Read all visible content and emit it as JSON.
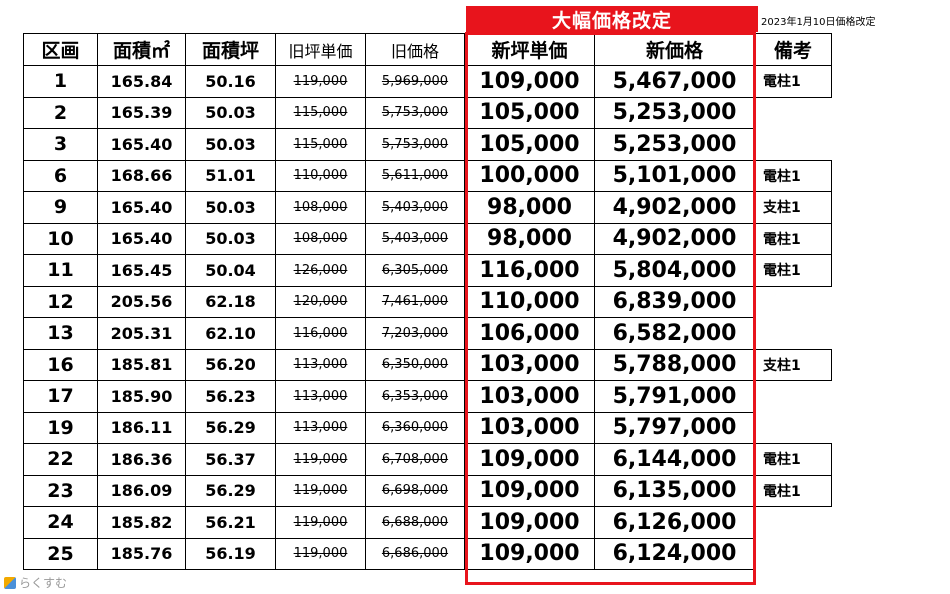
{
  "banner": "大幅価格改定",
  "date_note": "2023年1月10日価格改定",
  "headers": {
    "lot": "区画",
    "area_m2": "面積㎡",
    "area_tsubo": "面積坪",
    "old_unit": "旧坪単価",
    "old_price": "旧価格",
    "new_unit": "新坪単価",
    "new_price": "新価格",
    "note": "備考"
  },
  "rows": [
    {
      "lot": "1",
      "m2": "165.84",
      "tsubo": "50.16",
      "old_unit": "119,000",
      "old_price": "5,969,000",
      "new_unit": "109,000",
      "new_price": "5,467,000",
      "note": "電柱1"
    },
    {
      "lot": "2",
      "m2": "165.39",
      "tsubo": "50.03",
      "old_unit": "115,000",
      "old_price": "5,753,000",
      "new_unit": "105,000",
      "new_price": "5,253,000",
      "note": ""
    },
    {
      "lot": "3",
      "m2": "165.40",
      "tsubo": "50.03",
      "old_unit": "115,000",
      "old_price": "5,753,000",
      "new_unit": "105,000",
      "new_price": "5,253,000",
      "note": ""
    },
    {
      "lot": "6",
      "m2": "168.66",
      "tsubo": "51.01",
      "old_unit": "110,000",
      "old_price": "5,611,000",
      "new_unit": "100,000",
      "new_price": "5,101,000",
      "note": "電柱1"
    },
    {
      "lot": "9",
      "m2": "165.40",
      "tsubo": "50.03",
      "old_unit": "108,000",
      "old_price": "5,403,000",
      "new_unit": "98,000",
      "new_price": "4,902,000",
      "note": "支柱1"
    },
    {
      "lot": "10",
      "m2": "165.40",
      "tsubo": "50.03",
      "old_unit": "108,000",
      "old_price": "5,403,000",
      "new_unit": "98,000",
      "new_price": "4,902,000",
      "note": "電柱1"
    },
    {
      "lot": "11",
      "m2": "165.45",
      "tsubo": "50.04",
      "old_unit": "126,000",
      "old_price": "6,305,000",
      "new_unit": "116,000",
      "new_price": "5,804,000",
      "note": "電柱1"
    },
    {
      "lot": "12",
      "m2": "205.56",
      "tsubo": "62.18",
      "old_unit": "120,000",
      "old_price": "7,461,000",
      "new_unit": "110,000",
      "new_price": "6,839,000",
      "note": ""
    },
    {
      "lot": "13",
      "m2": "205.31",
      "tsubo": "62.10",
      "old_unit": "116,000",
      "old_price": "7,203,000",
      "new_unit": "106,000",
      "new_price": "6,582,000",
      "note": ""
    },
    {
      "lot": "16",
      "m2": "185.81",
      "tsubo": "56.20",
      "old_unit": "113,000",
      "old_price": "6,350,000",
      "new_unit": "103,000",
      "new_price": "5,788,000",
      "note": "支柱1"
    },
    {
      "lot": "17",
      "m2": "185.90",
      "tsubo": "56.23",
      "old_unit": "113,000",
      "old_price": "6,353,000",
      "new_unit": "103,000",
      "new_price": "5,791,000",
      "note": ""
    },
    {
      "lot": "19",
      "m2": "186.11",
      "tsubo": "56.29",
      "old_unit": "113,000",
      "old_price": "6,360,000",
      "new_unit": "103,000",
      "new_price": "5,797,000",
      "note": ""
    },
    {
      "lot": "22",
      "m2": "186.36",
      "tsubo": "56.37",
      "old_unit": "119,000",
      "old_price": "6,708,000",
      "new_unit": "109,000",
      "new_price": "6,144,000",
      "note": "電柱1"
    },
    {
      "lot": "23",
      "m2": "186.09",
      "tsubo": "56.29",
      "old_unit": "119,000",
      "old_price": "6,698,000",
      "new_unit": "109,000",
      "new_price": "6,135,000",
      "note": "電柱1"
    },
    {
      "lot": "24",
      "m2": "185.82",
      "tsubo": "56.21",
      "old_unit": "119,000",
      "old_price": "6,688,000",
      "new_unit": "109,000",
      "new_price": "6,126,000",
      "note": ""
    },
    {
      "lot": "25",
      "m2": "185.76",
      "tsubo": "56.19",
      "old_unit": "119,000",
      "old_price": "6,686,000",
      "new_unit": "109,000",
      "new_price": "6,124,000",
      "note": ""
    }
  ],
  "colors": {
    "accent_red": "#e8141c"
  },
  "logo": {
    "text": "らくすむ",
    "icon": "house-logo-icon"
  }
}
